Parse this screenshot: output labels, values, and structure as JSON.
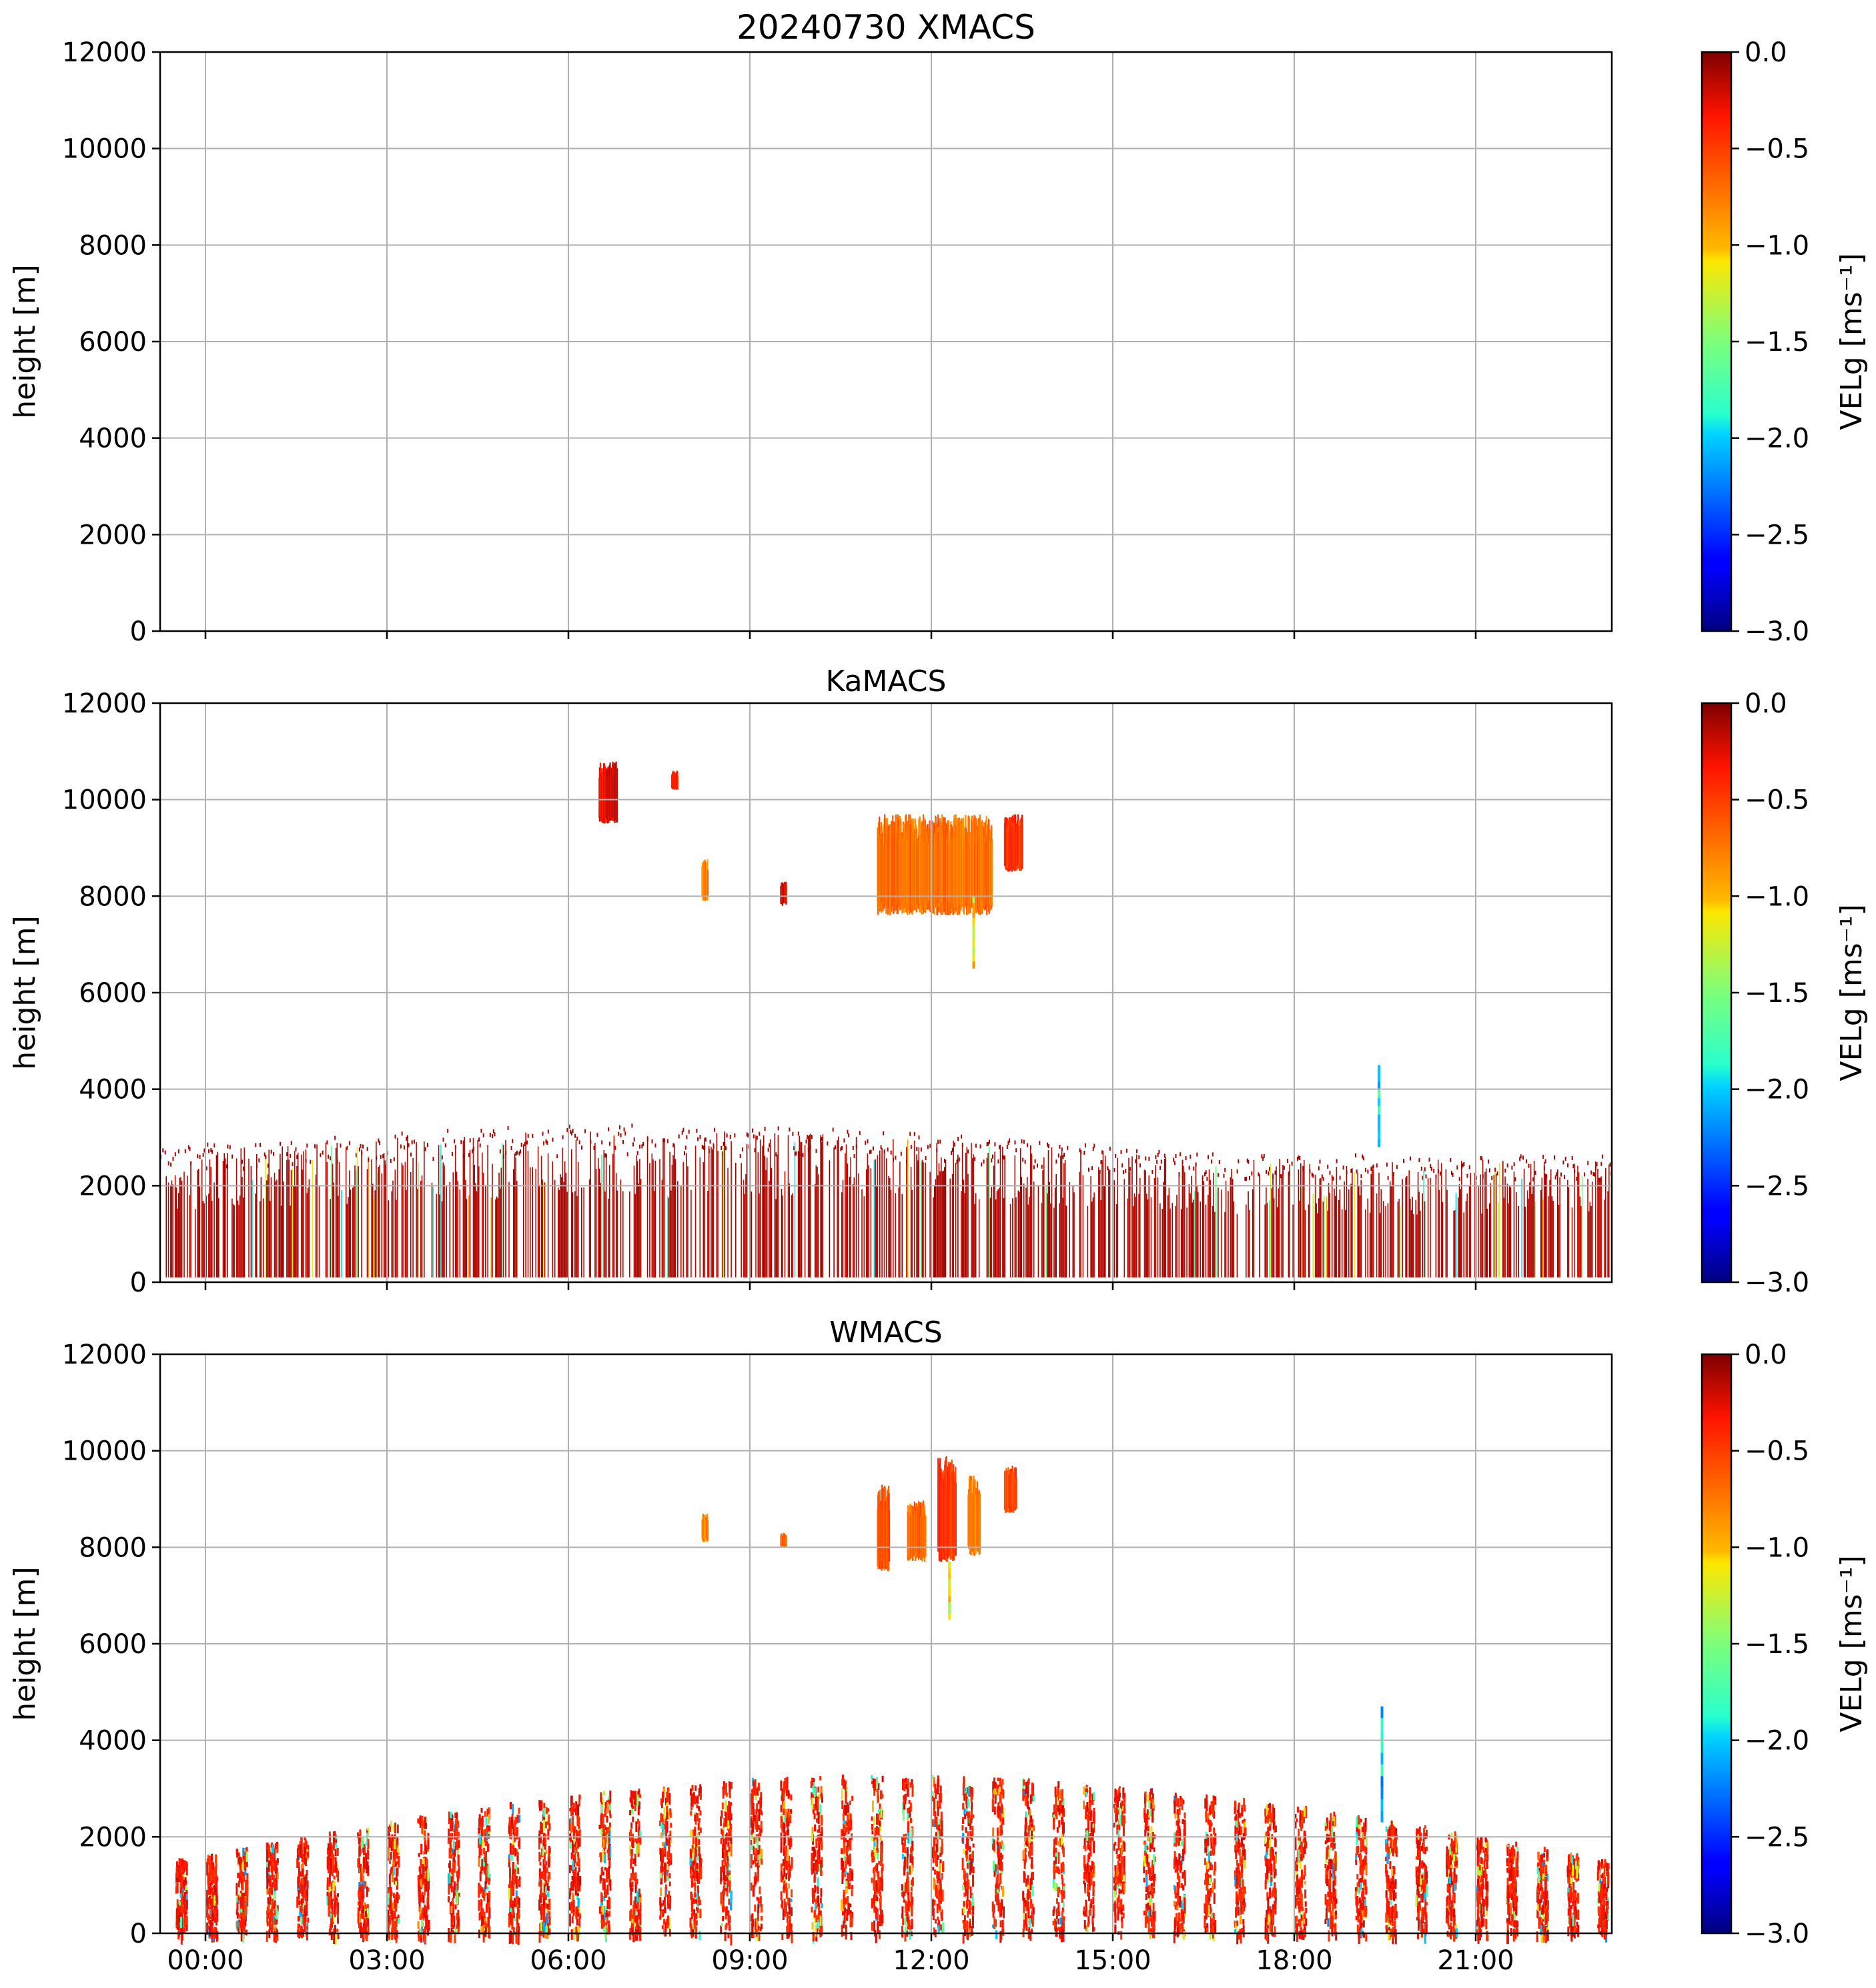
{
  "figure": {
    "suptitle_prefix": "20240730"
  },
  "chart_data": [
    {
      "type": "heatmap",
      "title": "20240730 XMACS",
      "instrument": "XMACS",
      "ylabel": "height [m]",
      "ylim": [
        0,
        12000
      ],
      "yticks": [
        "0",
        "2000",
        "4000",
        "6000",
        "8000",
        "10000",
        "12000"
      ],
      "xlim_hours": [
        -0.75,
        23.25
      ],
      "xtick_hours": [
        0,
        3,
        6,
        9,
        12,
        15,
        18,
        21
      ],
      "xticklabels": [],
      "grid": true,
      "colorbar": {
        "label": "VELg [ms⁻¹]",
        "vmin": -3.0,
        "vmax": 0.0,
        "ticks": [
          "0.0",
          "−0.5",
          "−1.0",
          "−1.5",
          "−2.0",
          "−2.5",
          "−3.0"
        ],
        "cmap": "jet"
      },
      "regions": []
    },
    {
      "type": "heatmap",
      "title": "KaMACS",
      "instrument": "KaMACS",
      "ylabel": "height [m]",
      "ylim": [
        0,
        12000
      ],
      "yticks": [
        "0",
        "2000",
        "4000",
        "6000",
        "8000",
        "10000",
        "12000"
      ],
      "xlim_hours": [
        -0.75,
        23.25
      ],
      "xtick_hours": [
        0,
        3,
        6,
        9,
        12,
        15,
        18,
        21
      ],
      "xticklabels": [],
      "grid": true,
      "colorbar": {
        "label": "VELg [ms⁻¹]",
        "vmin": -3.0,
        "vmax": 0.0,
        "ticks": [
          "0.0",
          "−0.5",
          "−1.0",
          "−1.5",
          "−2.0",
          "−2.5",
          "−3.0"
        ],
        "cmap": "jet"
      },
      "regions": [
        {
          "kind": "boundary_layer",
          "t0": -0.75,
          "t1": 23.25,
          "h_top_start": 2700,
          "h_top_peak": 3200,
          "h_top_end": 2400,
          "vel": -0.05
        },
        {
          "kind": "cirrus",
          "t0": 11.1,
          "t1": 13.0,
          "h0": 7600,
          "h1": 9700,
          "vel": -0.55
        },
        {
          "kind": "fallstreak",
          "t": 12.7,
          "h0": 6500,
          "h1": 8000,
          "vel": -1.1
        },
        {
          "kind": "cloud",
          "t0": 6.5,
          "t1": 6.8,
          "h0": 9500,
          "h1": 10800,
          "vel": -0.1
        },
        {
          "kind": "cloud",
          "t0": 7.7,
          "t1": 7.8,
          "h0": 10200,
          "h1": 10600,
          "vel": -0.2
        },
        {
          "kind": "cloud",
          "t0": 8.2,
          "t1": 8.3,
          "h0": 7900,
          "h1": 8800,
          "vel": -0.6
        },
        {
          "kind": "cloud",
          "t0": 9.5,
          "t1": 9.6,
          "h0": 7800,
          "h1": 8300,
          "vel": -0.05
        },
        {
          "kind": "cloud",
          "t0": 13.2,
          "t1": 13.5,
          "h0": 8500,
          "h1": 9700,
          "vel": -0.3
        },
        {
          "kind": "precip",
          "t": 19.4,
          "h0": 2800,
          "h1": 4500,
          "vel": -1.9
        }
      ]
    },
    {
      "type": "heatmap",
      "title": "WMACS",
      "instrument": "WMACS",
      "ylabel": "height [m]",
      "ylim": [
        0,
        12000
      ],
      "yticks": [
        "0",
        "2000",
        "4000",
        "6000",
        "8000",
        "10000",
        "12000"
      ],
      "xlim_hours": [
        -0.75,
        23.25
      ],
      "xtick_hours": [
        0,
        3,
        6,
        9,
        12,
        15,
        18,
        21
      ],
      "xticklabels": [
        "00:00",
        "03:00",
        "06:00",
        "09:00",
        "12:00",
        "15:00",
        "18:00",
        "21:00"
      ],
      "grid": true,
      "colorbar": {
        "label": "VELg [ms⁻¹]",
        "vmin": -3.0,
        "vmax": 0.0,
        "ticks": [
          "0.0",
          "−0.5",
          "−1.0",
          "−1.5",
          "−2.0",
          "−2.5",
          "−3.0"
        ],
        "cmap": "jet"
      },
      "regions": [
        {
          "kind": "bursts",
          "t0": -0.5,
          "t1": 23.0,
          "period": 0.5,
          "h_top": 2900,
          "vel": -0.2
        },
        {
          "kind": "cloud",
          "t0": 11.1,
          "t1": 11.3,
          "h0": 7500,
          "h1": 9300,
          "vel": -0.4
        },
        {
          "kind": "cloud",
          "t0": 11.6,
          "t1": 11.9,
          "h0": 7700,
          "h1": 9000,
          "vel": -0.5
        },
        {
          "kind": "cloud",
          "t0": 12.1,
          "t1": 12.4,
          "h0": 7700,
          "h1": 9900,
          "vel": -0.3
        },
        {
          "kind": "cloud",
          "t0": 12.6,
          "t1": 12.8,
          "h0": 7800,
          "h1": 9500,
          "vel": -0.6
        },
        {
          "kind": "cloud",
          "t0": 13.2,
          "t1": 13.4,
          "h0": 8700,
          "h1": 9700,
          "vel": -0.4
        },
        {
          "kind": "fallstreak",
          "t": 12.3,
          "h0": 6500,
          "h1": 7700,
          "vel": -1.2
        },
        {
          "kind": "cloud",
          "t0": 8.2,
          "t1": 8.3,
          "h0": 8100,
          "h1": 8700,
          "vel": -0.6
        },
        {
          "kind": "cloud",
          "t0": 9.5,
          "t1": 9.6,
          "h0": 8000,
          "h1": 8300,
          "vel": -0.5
        },
        {
          "kind": "precip",
          "t": 19.45,
          "h0": 2300,
          "h1": 4700,
          "vel": -2.0
        }
      ]
    }
  ]
}
